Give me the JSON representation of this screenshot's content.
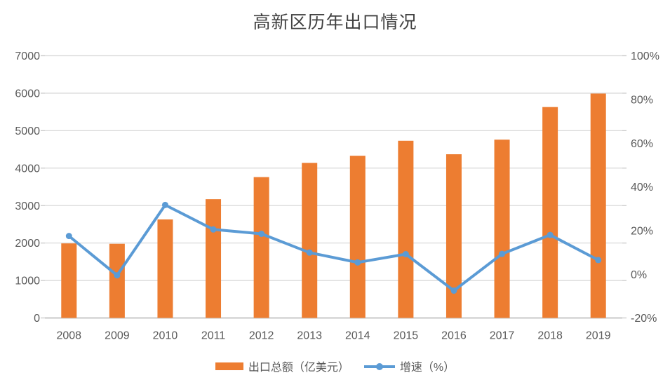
{
  "chart_data": {
    "type": "bar+line combo",
    "title": "高新区历年出口情况",
    "categories": [
      "2008",
      "2009",
      "2010",
      "2011",
      "2012",
      "2013",
      "2014",
      "2015",
      "2016",
      "2017",
      "2018",
      "2019"
    ],
    "series": [
      {
        "name": "出口总额（亿美元）",
        "type": "bar",
        "axis": "left",
        "color": "#ED7D31",
        "values": [
          1990,
          1980,
          2630,
          3170,
          3760,
          4140,
          4330,
          4730,
          4370,
          4760,
          5630,
          5990
        ]
      },
      {
        "name": "增速（%）",
        "type": "line",
        "axis": "right",
        "color": "#5B9BD5",
        "marker": "circle",
        "values": [
          17.5,
          -0.5,
          31.7,
          20.5,
          18.5,
          9.9,
          5.4,
          9.2,
          -7.5,
          9.3,
          18.0,
          6.5
        ]
      }
    ],
    "left_axis": {
      "min": 0,
      "max": 7000,
      "step": 1000,
      "tick_labels": [
        "0",
        "1000",
        "2000",
        "3000",
        "4000",
        "5000",
        "6000",
        "7000"
      ]
    },
    "right_axis": {
      "min": -20,
      "max": 100,
      "step": 20,
      "tick_labels": [
        "-20%",
        "0%",
        "20%",
        "40%",
        "60%",
        "80%",
        "100%"
      ]
    },
    "grid": "horizontal only",
    "legend_position": "bottom"
  },
  "colors": {
    "background": "#FFFFFF",
    "title_text": "#404040",
    "tick_text": "#595959",
    "gridline": "#D9D9D9",
    "axis_line": "#C9C9C9",
    "bar": "#ED7D31",
    "line": "#5B9BD5"
  }
}
